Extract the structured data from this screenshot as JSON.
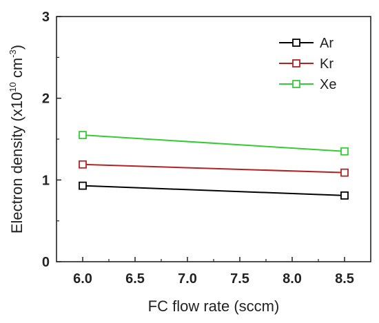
{
  "chart_data": {
    "type": "line",
    "x": [
      6.0,
      8.5
    ],
    "xlabel": "FC flow rate (sccm)",
    "ylabel": {
      "prefix": "Electron density (x10",
      "exp1": "10",
      "mid": " cm",
      "exp2": "-3",
      "suffix": ")"
    },
    "xlim": [
      5.75,
      8.75
    ],
    "ylim": [
      0,
      3
    ],
    "xticks": [
      "6.0",
      "6.5",
      "7.0",
      "7.5",
      "8.0",
      "8.5"
    ],
    "yticks": [
      "0",
      "1",
      "2",
      "3"
    ],
    "legend_position": "top-right",
    "series": [
      {
        "name": "Ar",
        "color": "#000000",
        "marker": "open-square",
        "values": [
          0.93,
          0.81
        ]
      },
      {
        "name": "Kr",
        "color": "#b22222",
        "marker": "open-square",
        "values": [
          1.19,
          1.09
        ]
      },
      {
        "name": "Xe",
        "color": "#33cc33",
        "marker": "open-square",
        "values": [
          1.55,
          1.35
        ]
      }
    ]
  }
}
